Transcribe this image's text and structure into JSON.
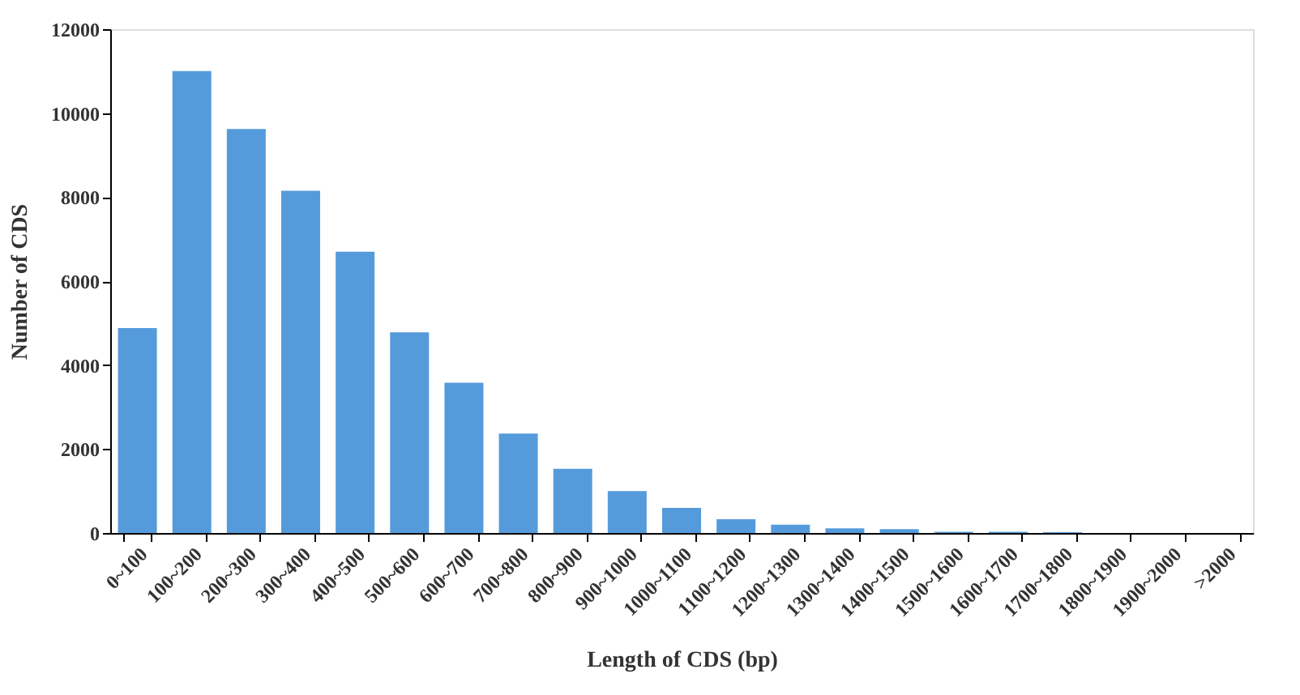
{
  "chart_data": {
    "type": "bar",
    "xlabel": "Length of CDS (bp)",
    "ylabel": "Number of CDS",
    "categories": [
      "0~100",
      "100~200",
      "200~300",
      "300~400",
      "400~500",
      "500~600",
      "600~700",
      "700~800",
      "800~900",
      "900~1000",
      "1000~1100",
      "1100~1200",
      "1200~1300",
      "1300~1400",
      "1400~1500",
      "1500~1600",
      "1600~1700",
      "1700~1800",
      "1800~1900",
      "1900~2000",
      ">2000"
    ],
    "values": [
      4880,
      11000,
      9620,
      8150,
      6700,
      4780,
      3580,
      2370,
      1530,
      1000,
      600,
      330,
      200,
      110,
      90,
      30,
      30,
      20,
      0,
      0,
      0
    ],
    "color": "#559bdc",
    "ylim": [
      0,
      12000
    ],
    "yticks": [
      0,
      2000,
      4000,
      6000,
      8000,
      10000,
      12000
    ],
    "grid": false
  }
}
